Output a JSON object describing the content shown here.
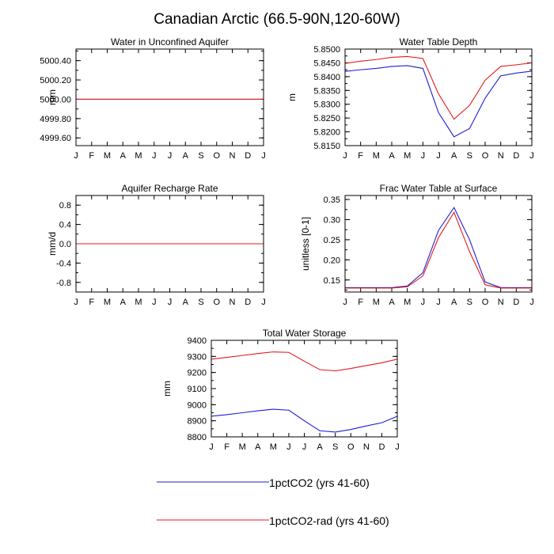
{
  "title": "Canadian Arctic (66.5-90N,120-60W)",
  "legend": [
    {
      "label": "1pctCO2 (yrs 41-60)",
      "color": "#1f1fd6"
    },
    {
      "label": "1pctCO2-rad (yrs 41-60)",
      "color": "#e31a1c"
    }
  ],
  "chart_data": [
    {
      "type": "line",
      "title": "Water in Unconfined Aquifer",
      "ylabel": "mm",
      "categories": [
        "J",
        "F",
        "M",
        "A",
        "M",
        "J",
        "J",
        "A",
        "S",
        "O",
        "N",
        "D",
        "J"
      ],
      "ylim": [
        4999.52,
        5000.52
      ],
      "yticks": [
        4999.6,
        4999.8,
        5000.0,
        5000.2,
        5000.4
      ],
      "yticklabels": [
        "4999.60",
        "4999.80",
        "5000.00",
        "5000.20",
        "5000.40"
      ],
      "series": [
        {
          "name": "1pctCO2 (yrs 41-60)",
          "color": "#1f1fd6",
          "values": [
            5000.0,
            5000.0,
            5000.0,
            5000.0,
            5000.0,
            5000.0,
            5000.0,
            5000.0,
            5000.0,
            5000.0,
            5000.0,
            5000.0,
            5000.0
          ]
        },
        {
          "name": "1pctCO2-rad (yrs 41-60)",
          "color": "#e31a1c",
          "values": [
            5000.0,
            5000.0,
            5000.0,
            5000.0,
            5000.0,
            5000.0,
            5000.0,
            5000.0,
            5000.0,
            5000.0,
            5000.0,
            5000.0,
            5000.0
          ]
        }
      ]
    },
    {
      "type": "line",
      "title": "Water Table Depth",
      "ylabel": "m",
      "categories": [
        "J",
        "F",
        "M",
        "A",
        "M",
        "J",
        "J",
        "A",
        "S",
        "O",
        "N",
        "D",
        "J"
      ],
      "ylim": [
        5.815,
        5.85
      ],
      "yticks": [
        5.815,
        5.82,
        5.825,
        5.83,
        5.835,
        5.84,
        5.845,
        5.85
      ],
      "yticklabels": [
        "5.8150",
        "5.8200",
        "5.8250",
        "5.8300",
        "5.8350",
        "5.8400",
        "5.8450",
        "5.8500"
      ],
      "series": [
        {
          "name": "1pctCO2 (yrs 41-60)",
          "color": "#1f1fd6",
          "values": [
            5.8419,
            5.8425,
            5.843,
            5.8437,
            5.844,
            5.843,
            5.827,
            5.8182,
            5.8212,
            5.8322,
            5.8403,
            5.8413,
            5.842
          ]
        },
        {
          "name": "1pctCO2-rad (yrs 41-60)",
          "color": "#e31a1c",
          "values": [
            5.8448,
            5.8456,
            5.8462,
            5.847,
            5.8473,
            5.8466,
            5.8338,
            5.8246,
            5.8296,
            5.8387,
            5.8437,
            5.8443,
            5.845
          ]
        }
      ]
    },
    {
      "type": "line",
      "title": "Aquifer Recharge Rate",
      "ylabel": "mm/d",
      "categories": [
        "J",
        "F",
        "M",
        "A",
        "M",
        "J",
        "J",
        "A",
        "S",
        "O",
        "N",
        "D",
        "J"
      ],
      "ylim": [
        -1.0,
        1.0
      ],
      "yticks": [
        -0.8,
        -0.4,
        0.0,
        0.4,
        0.8
      ],
      "yticklabels": [
        "-0.8",
        "-0.4",
        "0.0",
        "0.4",
        "0.8"
      ],
      "series": [
        {
          "name": "1pctCO2 (yrs 41-60)",
          "color": "#1f1fd6",
          "values": [
            0,
            0,
            0,
            0,
            0,
            0,
            0,
            0,
            0,
            0,
            0,
            0,
            0
          ]
        },
        {
          "name": "1pctCO2-rad (yrs 41-60)",
          "color": "#e31a1c",
          "values": [
            0,
            0,
            0,
            0,
            0,
            0,
            0,
            0,
            0,
            0,
            0,
            0,
            0
          ]
        }
      ]
    },
    {
      "type": "line",
      "title": "Frac Water Table at Surface",
      "ylabel": "unitless [0-1]",
      "categories": [
        "J",
        "F",
        "M",
        "A",
        "M",
        "J",
        "J",
        "A",
        "S",
        "O",
        "N",
        "D",
        "J"
      ],
      "ylim": [
        0.12,
        0.36
      ],
      "yticks": [
        0.15,
        0.2,
        0.25,
        0.3,
        0.35
      ],
      "yticklabels": [
        "0.15",
        "0.20",
        "0.25",
        "0.30",
        "0.35"
      ],
      "series": [
        {
          "name": "1pctCO2 (yrs 41-60)",
          "color": "#1f1fd6",
          "values": [
            0.131,
            0.131,
            0.131,
            0.131,
            0.135,
            0.168,
            0.273,
            0.33,
            0.25,
            0.145,
            0.131,
            0.131,
            0.131
          ]
        },
        {
          "name": "1pctCO2-rad (yrs 41-60)",
          "color": "#e31a1c",
          "values": [
            0.13,
            0.13,
            0.13,
            0.13,
            0.133,
            0.16,
            0.255,
            0.318,
            0.22,
            0.138,
            0.13,
            0.13,
            0.13
          ]
        }
      ]
    },
    {
      "type": "line",
      "title": "Total Water Storage",
      "ylabel": "mm",
      "categories": [
        "J",
        "F",
        "M",
        "A",
        "M",
        "J",
        "J",
        "A",
        "S",
        "O",
        "N",
        "D",
        "J"
      ],
      "ylim": [
        8800,
        9400
      ],
      "yticks": [
        8800,
        8900,
        9000,
        9100,
        9200,
        9300,
        9400
      ],
      "yticklabels": [
        "8800",
        "8900",
        "9000",
        "9100",
        "9200",
        "9300",
        "9400"
      ],
      "series": [
        {
          "name": "1pctCO2 (yrs 41-60)",
          "color": "#1f1fd6",
          "values": [
            8928,
            8938,
            8950,
            8962,
            8972,
            8966,
            8900,
            8838,
            8830,
            8846,
            8868,
            8888,
            8928
          ]
        },
        {
          "name": "1pctCO2-rad (yrs 41-60)",
          "color": "#e31a1c",
          "values": [
            9283,
            9294,
            9306,
            9318,
            9328,
            9325,
            9270,
            9218,
            9210,
            9225,
            9243,
            9260,
            9283
          ]
        }
      ]
    }
  ]
}
